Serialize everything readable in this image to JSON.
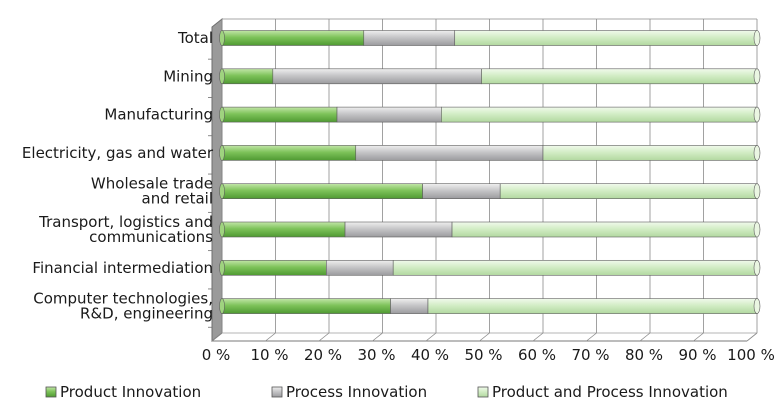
{
  "chart_data": {
    "type": "bar",
    "orientation": "horizontal",
    "stacked": "percent",
    "categories": [
      [
        "Total"
      ],
      [
        "Mining"
      ],
      [
        "Manufacturing"
      ],
      [
        "Electricity, gas and water"
      ],
      [
        "Wholesale trade",
        "and retail"
      ],
      [
        "Transport, logistics and",
        "communications"
      ],
      [
        "Financial intermediation"
      ],
      [
        "Computer technologies,",
        "R&D, engineering"
      ]
    ],
    "series": [
      {
        "name": "Product Innovation",
        "color": "#7ec35a",
        "values": [
          26.5,
          9.5,
          21.5,
          25,
          37.5,
          23,
          19.5,
          31.5
        ]
      },
      {
        "name": "Process Innovation",
        "color": "#c6c6c8",
        "values": [
          17,
          39,
          19.5,
          35,
          14.5,
          20,
          12.5,
          7
        ]
      },
      {
        "name": "Product and Process Innovation",
        "color": "#d3edc6",
        "values": [
          56.5,
          51.5,
          59,
          40,
          48,
          57,
          68,
          61.5
        ]
      }
    ],
    "x_ticks": [
      "0 %",
      "10 %",
      "20 %",
      "30 %",
      "40 %",
      "50 %",
      "60 %",
      "70 %",
      "80 %",
      "90 %",
      "100 %"
    ],
    "xlim": [
      0,
      100
    ],
    "grid": true,
    "legend": "bottom"
  }
}
